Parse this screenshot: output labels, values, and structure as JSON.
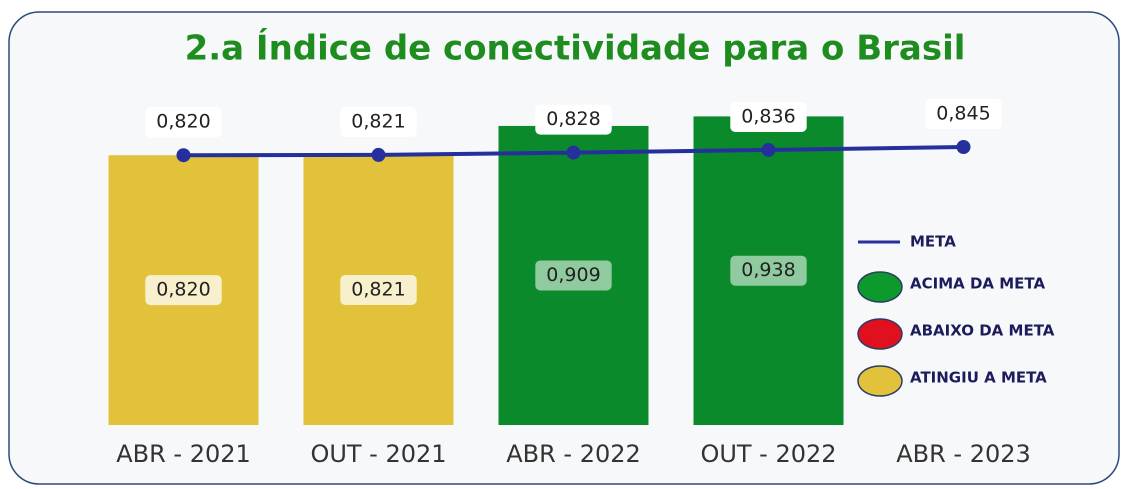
{
  "chart_data": {
    "type": "bar",
    "title": "2.a Índice de conectividade para o Brasil",
    "categories": [
      "ABR - 2021",
      "OUT - 2021",
      "ABR - 2022",
      "OUT - 2022",
      "ABR - 2023"
    ],
    "series": [
      {
        "type": "bar",
        "values": [
          0.82,
          0.821,
          0.909,
          0.938,
          null
        ],
        "value_labels": [
          "0,820",
          "0,821",
          "0,909",
          "0,938",
          null
        ],
        "colors": [
          "#e2c23a",
          "#e2c23a",
          "#0b8a2b",
          "#0b8a2b",
          null
        ]
      },
      {
        "type": "line",
        "name": "META",
        "color": "#25309c",
        "values": [
          0.82,
          0.821,
          0.828,
          0.836,
          0.845
        ],
        "value_labels": [
          "0,820",
          "0,821",
          "0,828",
          "0,836",
          "0,845"
        ]
      }
    ],
    "legend": [
      {
        "name": "ACIMA DA META",
        "color": "#0b9a2b"
      },
      {
        "name": "ABAIXO DA META",
        "color": "#e0101e"
      },
      {
        "name": "ATINGIU A META",
        "color": "#e2c23a"
      }
    ]
  }
}
